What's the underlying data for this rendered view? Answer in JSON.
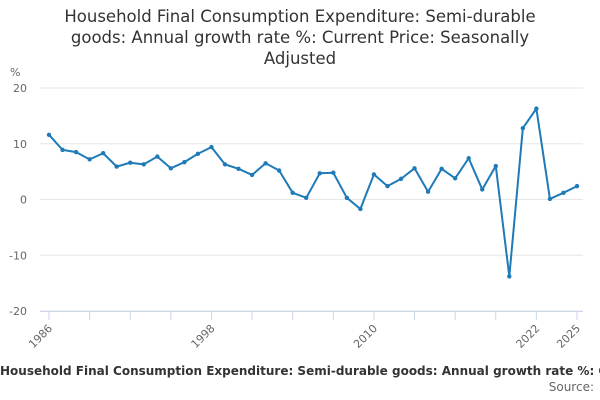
{
  "chart_data": {
    "type": "line",
    "title_lines": [
      "Household Final Consumption Expenditure: Semi-durable",
      "goods: Annual growth rate %: Current Price: Seasonally",
      "Adjusted"
    ],
    "ylabel": "%",
    "ylim": [
      -20,
      20
    ],
    "y_ticks": [
      20,
      10,
      0,
      -10,
      -20
    ],
    "x_range": [
      1986,
      2025
    ],
    "x_labels": [
      "1986",
      "1998",
      "2010",
      "2022",
      "2025"
    ],
    "x_minor_ticks": [
      1989,
      1992,
      1995,
      2001,
      2004,
      2007,
      2013,
      2016,
      2019
    ],
    "grid": true,
    "series": [
      {
        "name": "Household Final Consumption Expenditure: Semi-durable goods: Annual growth rate %: Current Price: Seasonally Adjusted",
        "color": "#1f7ab8",
        "x": [
          1986,
          1987,
          1988,
          1989,
          1990,
          1991,
          1992,
          1993,
          1994,
          1995,
          1996,
          1997,
          1998,
          1999,
          2000,
          2001,
          2002,
          2003,
          2004,
          2005,
          2006,
          2007,
          2008,
          2009,
          2010,
          2011,
          2012,
          2013,
          2014,
          2015,
          2016,
          2017,
          2018,
          2019,
          2020,
          2021,
          2022,
          2023,
          2024,
          2025
        ],
        "values": [
          11.6,
          8.9,
          8.5,
          7.2,
          8.3,
          5.9,
          6.6,
          6.3,
          7.7,
          5.6,
          6.7,
          8.2,
          9.4,
          6.3,
          5.5,
          4.4,
          6.5,
          5.2,
          1.2,
          0.3,
          4.7,
          4.8,
          0.3,
          -1.7,
          4.5,
          2.4,
          3.7,
          5.6,
          1.4,
          5.5,
          3.8,
          7.4,
          1.8,
          6.0,
          -13.8,
          12.8,
          16.3,
          0.1,
          1.2,
          2.4
        ]
      }
    ]
  },
  "legend": {
    "text": "Household Final Consumption Expenditure: Semi-durable goods: Annual growth rate %: Current Price: Seasonally Adjusted"
  },
  "source": {
    "label": "Source:"
  }
}
